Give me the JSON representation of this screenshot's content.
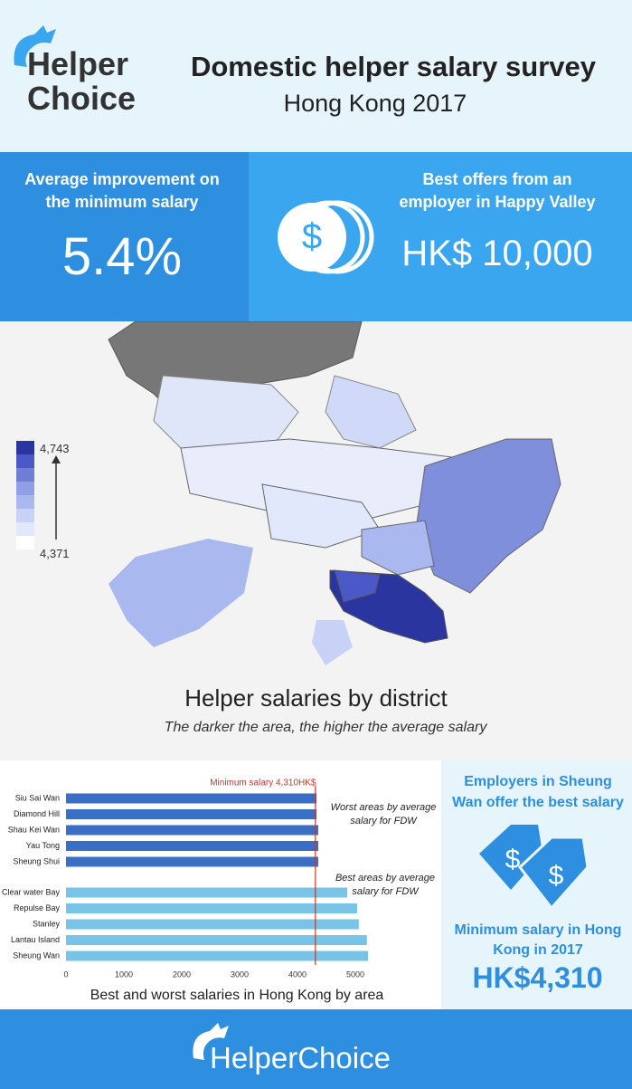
{
  "header": {
    "logo": [
      "Helper",
      "Choice"
    ],
    "title": "Domestic helper salary survey",
    "subtitle": "Hong Kong 2017"
  },
  "stats": [
    {
      "label": "Average improvement on the minimum salary",
      "value": "5.4%"
    },
    {
      "label": "Best offers from an employer in Happy Valley",
      "value": "HK$ 10,000"
    }
  ],
  "map": {
    "title": "Helper salaries by district",
    "subtitle": "The darker the area, the higher the average salary",
    "legend": {
      "max": "4,743",
      "min": "4,371",
      "colors": [
        "#2a35a0",
        "#4a58c8",
        "#6f7fd6",
        "#8fa0e6",
        "#aab8f0",
        "#c8d2f6",
        "#e2e8fb",
        "#ffffff"
      ]
    }
  },
  "chart_data": {
    "type": "bar",
    "orientation": "horizontal",
    "title": "Best and worst salaries in Hong Kong by area",
    "groups": [
      {
        "color": "#3a6fc4",
        "annotation": "Worst areas by average salary for FDW",
        "categories": [
          "Siu Sai Wan",
          "Diamond Hill",
          "Shau Kei Wan",
          "Yau Tong",
          "Sheung Shui"
        ],
        "values": [
          4330,
          4330,
          4360,
          4360,
          4360
        ]
      },
      {
        "color": "#79c3e6",
        "annotation": "Best areas by average salary for FDW",
        "categories": [
          "Clear water Bay",
          "Repulse Bay",
          "Stanley",
          "Lantau Island",
          "Sheung Wan"
        ],
        "values": [
          4860,
          5030,
          5060,
          5200,
          5220
        ]
      }
    ],
    "reference_line": {
      "value": 4310,
      "label": "Minimum salary 4,310HK$",
      "color": "#c0392b"
    },
    "xlim": [
      0,
      5400
    ],
    "xticks": [
      0,
      1000,
      2000,
      3000,
      4000,
      5000
    ]
  },
  "side_panel": {
    "best": "Employers in Sheung Wan offer the best salary",
    "minimum_label": "Minimum salary in Hong Kong in 2017",
    "minimum_value": "HK$4,310"
  },
  "footer": {
    "logo": "HelperChoice"
  }
}
